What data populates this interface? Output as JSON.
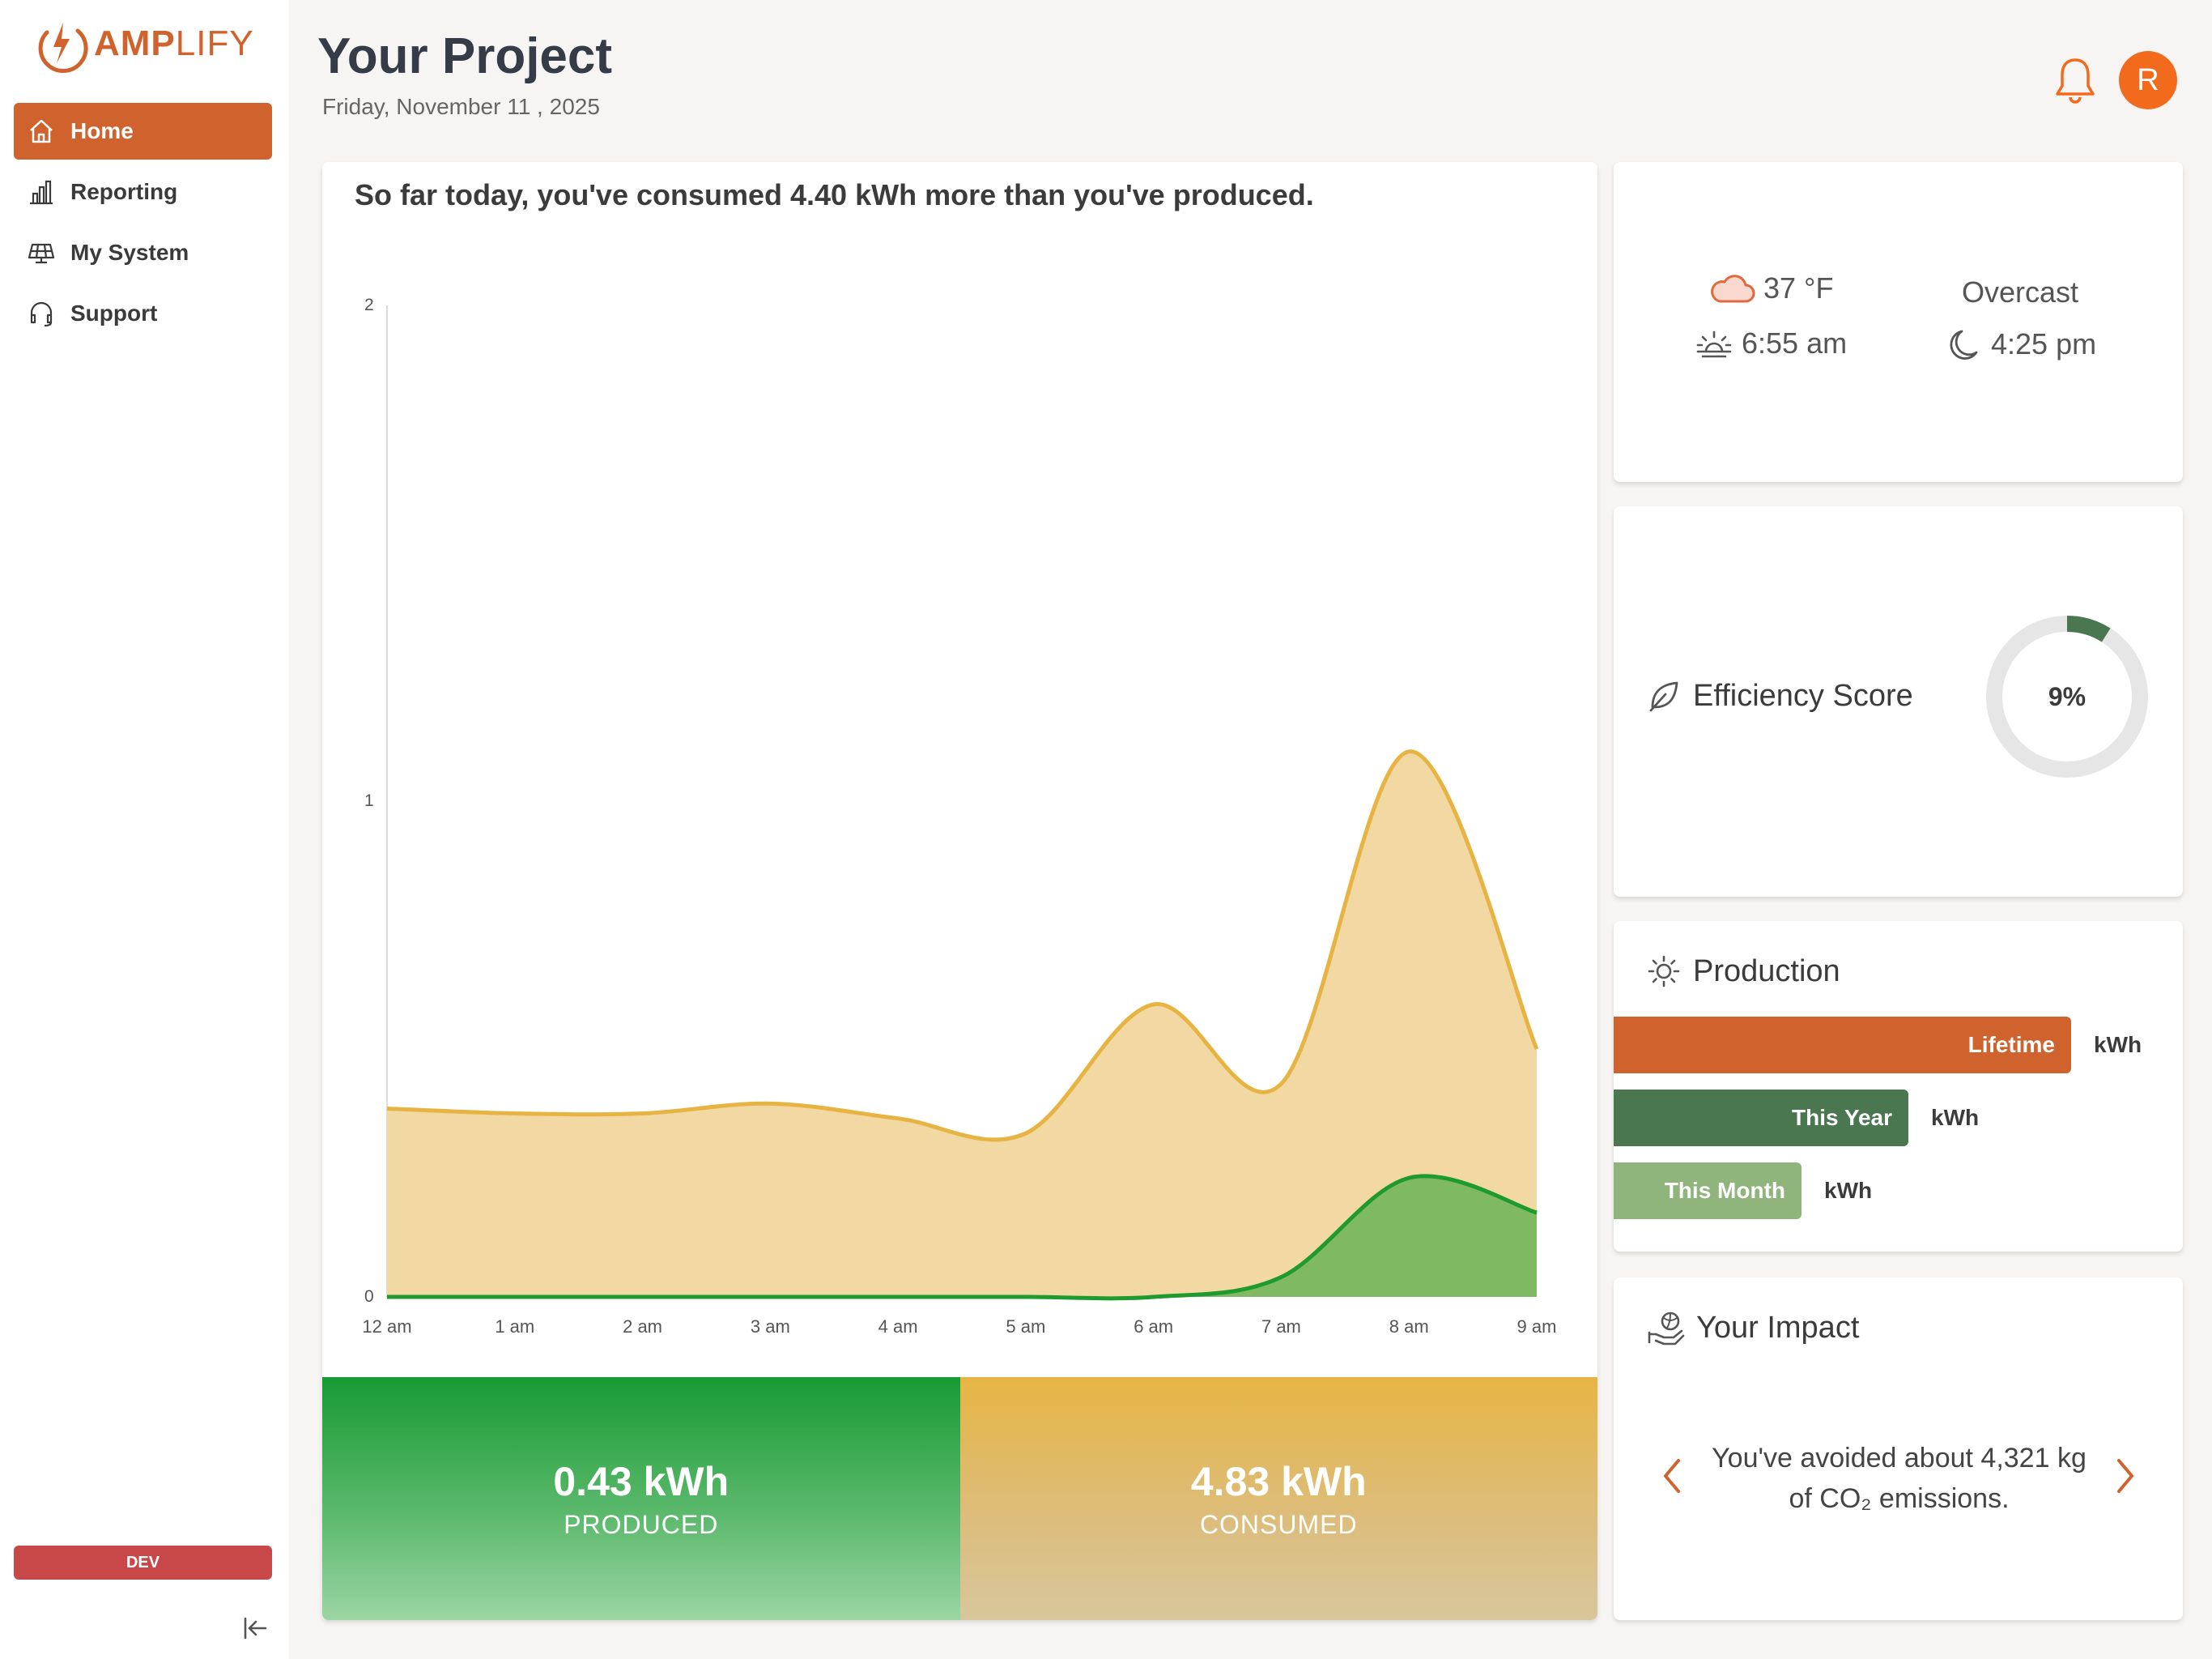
{
  "brand": {
    "name_bold": "AMP",
    "name_light": "LIFY"
  },
  "sidebar": {
    "items": [
      {
        "label": "Home",
        "icon": "home-icon",
        "active": true
      },
      {
        "label": "Reporting",
        "icon": "bar-chart-icon",
        "active": false
      },
      {
        "label": "My System",
        "icon": "solar-panel-icon",
        "active": false
      },
      {
        "label": "Support",
        "icon": "headset-icon",
        "active": false
      }
    ],
    "env_badge": "DEV"
  },
  "header": {
    "title": "Your Project",
    "date": "Friday, November 11 , 2025",
    "avatar_initial": "R"
  },
  "energy": {
    "headline": "So far today, you've consumed 4.40 kWh more than you've produced.",
    "produced_value": "0.43 kWh",
    "produced_label": "PRODUCED",
    "consumed_value": "4.83 kWh",
    "consumed_label": "CONSUMED"
  },
  "chart_data": {
    "type": "area",
    "x": [
      "12 am",
      "1 am",
      "2 am",
      "3 am",
      "4 am",
      "5 am",
      "6 am",
      "7 am",
      "8 am",
      "9 am"
    ],
    "ylim": [
      0,
      2
    ],
    "yticks": [
      "0",
      "1",
      "2"
    ],
    "grid": false,
    "series": [
      {
        "values": [
          0.38,
          0.37,
          0.37,
          0.39,
          0.36,
          0.33,
          0.59,
          0.43,
          1.1,
          0.5
        ],
        "color": "#e7b443",
        "fill": "#f2d8a3"
      },
      {
        "values": [
          0.0,
          0.0,
          0.0,
          0.0,
          0.0,
          0.0,
          0.0,
          0.04,
          0.24,
          0.17
        ],
        "color": "#1f9a2d",
        "fill": "#7fba62"
      }
    ]
  },
  "weather": {
    "temperature": "37 °F",
    "condition": "Overcast",
    "sunrise": "6:55 am",
    "sunset": "4:25 pm"
  },
  "efficiency": {
    "title": "Efficiency Score",
    "score_label": "9%",
    "score_fraction": 0.09
  },
  "production": {
    "title": "Production",
    "bars": [
      {
        "label": "Lifetime",
        "unit": "kWh",
        "color": "#d0622d"
      },
      {
        "label": "This Year",
        "unit": "kWh",
        "color": "#4a7650"
      },
      {
        "label": "This Month",
        "unit": "kWh",
        "color": "#8fb47c"
      }
    ]
  },
  "impact": {
    "title": "Your Impact",
    "message": "You've avoided about 4,321 kg of CO₂ emissions."
  },
  "colors": {
    "accent": "#d0622d",
    "produced": "#189a33",
    "consumed": "#e6b544",
    "dev": "#c8484a"
  }
}
